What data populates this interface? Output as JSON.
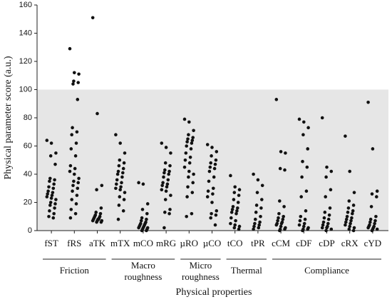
{
  "chart_data": {
    "type": "strip",
    "xlabel": "Physical properties",
    "ylabel": "Physical parameter score (a.u.)",
    "ylim": [
      0,
      160
    ],
    "yticks": [
      0,
      20,
      40,
      60,
      80,
      100,
      120,
      140,
      160
    ],
    "shade": [
      0,
      100
    ],
    "color": "#111111",
    "groups": [
      {
        "label": [
          "Friction"
        ],
        "categories": [
          "fST",
          "fRS",
          "aTK"
        ],
        "values": [
          [
            64,
            62,
            55,
            53,
            47,
            37,
            36,
            35,
            33,
            31,
            30,
            28,
            27,
            26,
            25,
            24,
            23,
            22,
            20,
            19,
            18,
            16,
            14,
            12,
            10,
            9
          ],
          [
            129,
            112,
            111,
            106,
            105,
            104,
            93,
            73,
            70,
            68,
            62,
            58,
            53,
            46,
            44,
            42,
            40,
            37,
            35,
            34,
            32,
            30,
            28,
            25,
            22,
            19,
            15,
            12,
            9
          ],
          [
            151,
            83,
            32,
            29,
            16,
            13,
            12,
            11,
            10,
            10,
            9,
            9,
            8,
            8,
            8,
            7,
            7,
            7,
            6,
            6
          ]
        ]
      },
      {
        "label": [
          "Macro",
          "roughness"
        ],
        "categories": [
          "mTX",
          "mCO",
          "mRG"
        ],
        "values": [
          [
            68,
            62,
            55,
            50,
            48,
            46,
            44,
            42,
            41,
            40,
            38,
            36,
            34,
            33,
            31,
            30,
            29,
            27,
            24,
            22,
            18,
            14,
            8
          ],
          [
            34,
            33,
            19,
            15,
            12,
            9,
            8,
            7,
            6,
            5,
            5,
            4,
            4,
            3,
            3,
            2,
            2,
            2,
            1,
            1,
            0,
            0
          ],
          [
            62,
            59,
            55,
            48,
            46,
            43,
            42,
            41,
            40,
            38,
            36,
            34,
            33,
            32,
            31,
            29,
            28,
            25,
            22,
            15,
            13,
            12,
            2
          ]
        ]
      },
      {
        "label": [
          "Micro",
          "roughness"
        ],
        "categories": [
          "µRO",
          "µCO"
        ],
        "values": [
          [
            79,
            77,
            71,
            68,
            66,
            65,
            64,
            63,
            62,
            60,
            58,
            55,
            52,
            50,
            48,
            45,
            42,
            40,
            38,
            34,
            31,
            27,
            24,
            12,
            10
          ],
          [
            61,
            59,
            56,
            53,
            50,
            48,
            47,
            45,
            44,
            42,
            38,
            35,
            30,
            28,
            26,
            24,
            20,
            14,
            12,
            11,
            9,
            4
          ]
        ]
      },
      {
        "label": [
          "Thermal"
        ],
        "categories": [
          "tCO",
          "tPR"
        ],
        "values": [
          [
            39,
            31,
            29,
            27,
            25,
            22,
            20,
            17,
            16,
            15,
            14,
            13,
            12,
            9,
            7,
            5,
            4,
            3,
            2,
            1
          ],
          [
            40,
            36,
            32,
            27,
            22,
            18,
            16,
            13,
            10,
            8,
            6,
            5,
            4,
            3,
            2,
            1
          ]
        ]
      },
      {
        "label": [
          "Compliance"
        ],
        "categories": [
          "cCM",
          "cDF",
          "cDP",
          "cRX",
          "cYD"
        ],
        "values": [
          [
            93,
            56,
            55,
            44,
            43,
            21,
            17,
            12,
            10,
            9,
            8,
            7,
            6,
            5,
            5,
            4,
            3,
            2,
            1,
            1,
            0
          ],
          [
            79,
            77,
            73,
            68,
            58,
            49,
            45,
            38,
            28,
            24,
            14,
            10,
            8,
            7,
            5,
            4,
            3,
            2,
            1,
            1,
            0
          ],
          [
            80,
            45,
            42,
            38,
            29,
            24,
            16,
            13,
            11,
            9,
            8,
            6,
            5,
            4,
            3,
            2,
            2,
            1,
            0
          ],
          [
            67,
            42,
            27,
            21,
            18,
            16,
            14,
            13,
            12,
            10,
            9,
            8,
            7,
            6,
            5,
            4,
            3,
            2,
            1,
            0
          ],
          [
            91,
            58,
            28,
            26,
            24,
            17,
            10,
            8,
            7,
            6,
            5,
            4,
            3,
            3,
            2,
            2,
            1,
            1,
            0
          ]
        ]
      }
    ]
  }
}
